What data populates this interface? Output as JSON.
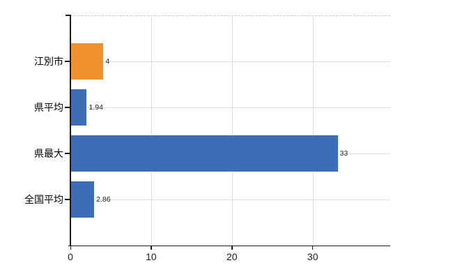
{
  "chart_data": {
    "type": "bar",
    "orientation": "horizontal",
    "title": "",
    "xlabel": "",
    "ylabel": "",
    "categories": [
      "江別市",
      "県平均",
      "県最大",
      "全国平均"
    ],
    "values": [
      4,
      1.94,
      33,
      2.86
    ],
    "value_labels": [
      "4",
      "1.94",
      "33",
      "2.86"
    ],
    "bar_colors": [
      "#f0912f",
      "#3c6db5",
      "#3c6db5",
      "#3c6db5"
    ],
    "x_ticks": [
      0,
      10,
      20,
      30
    ],
    "x_tick_labels": [
      "0",
      "10",
      "20",
      "30"
    ],
    "xlim": [
      0,
      39.6
    ],
    "grid": true,
    "legend": "none"
  },
  "colors": {
    "highlight_bar": "#f0912f",
    "default_bar": "#3c6db5",
    "gridline": "#dedede",
    "axis": "#1a1a1a",
    "top_border": "#c9c9c9",
    "tick_text": "#1c1c1c"
  }
}
